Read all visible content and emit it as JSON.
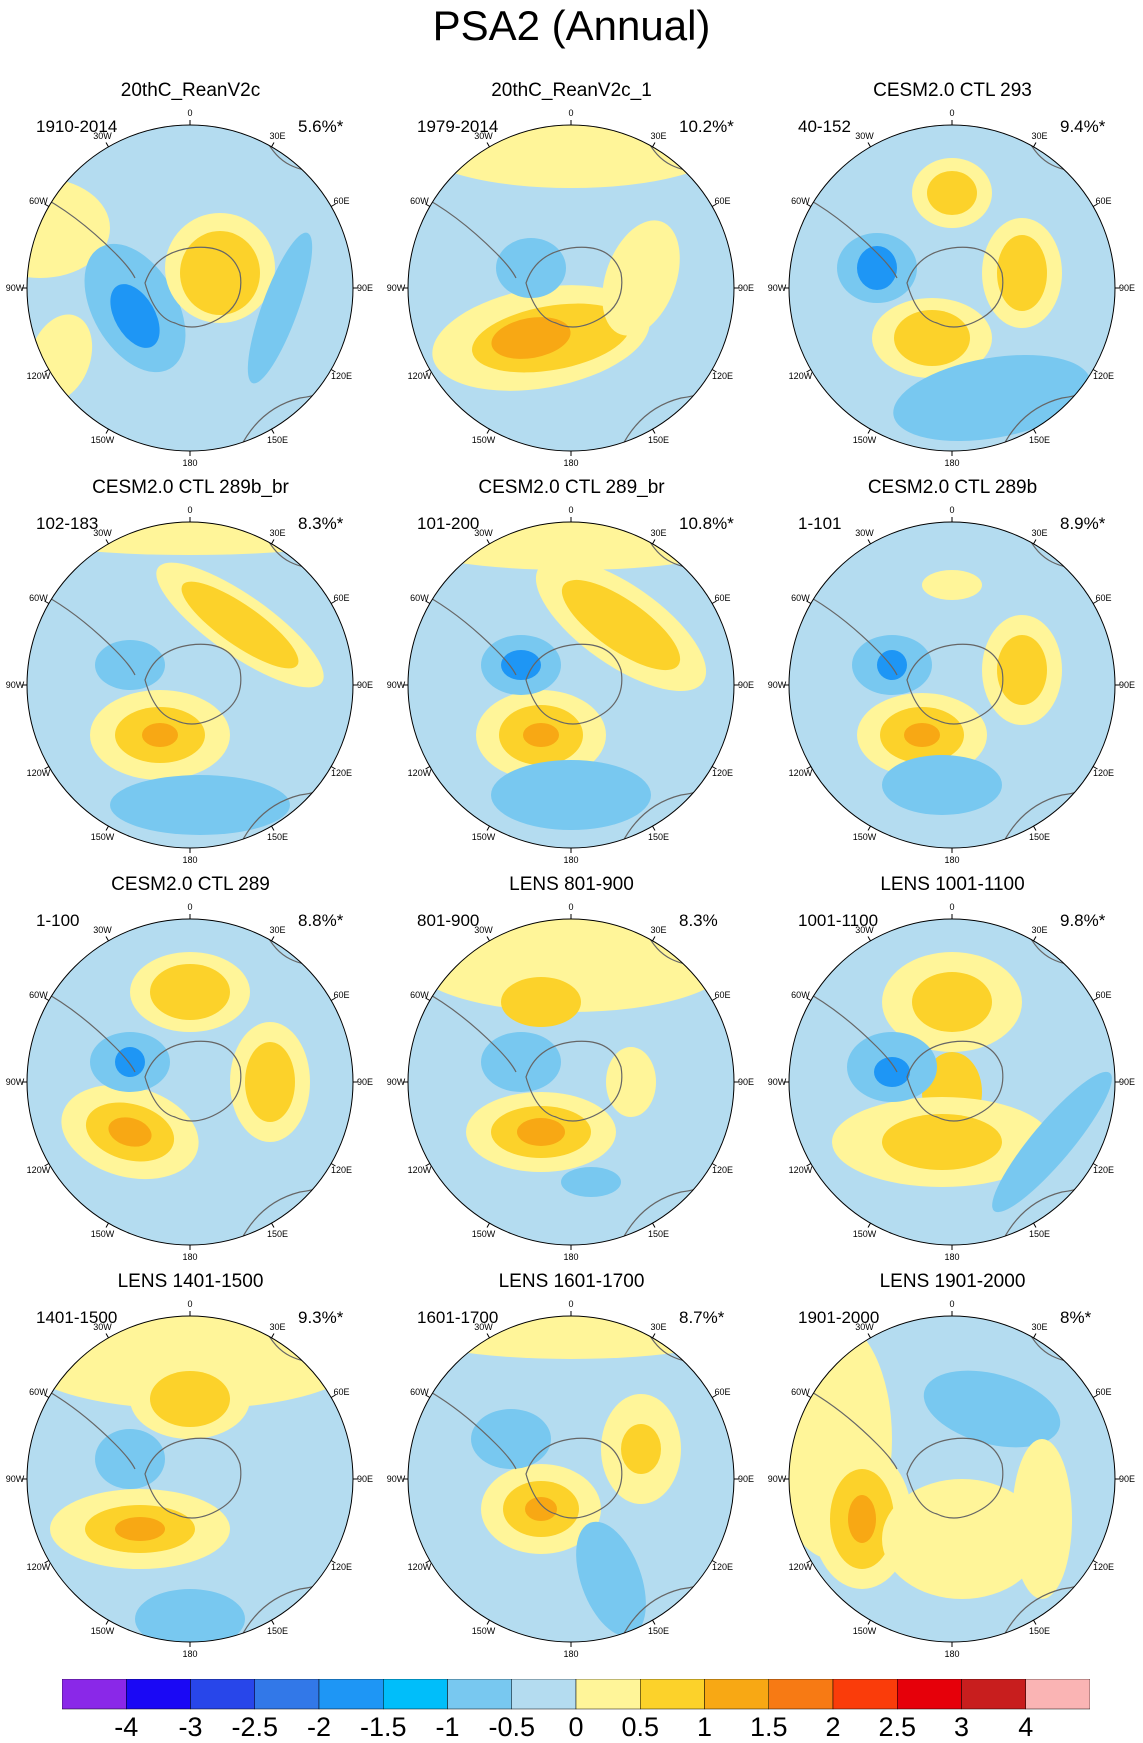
{
  "title": "PSA2 (Annual)",
  "panels": [
    {
      "title": "20thC_ReanV2c",
      "period": "1910-2014",
      "pct": "5.6%*"
    },
    {
      "title": "20thC_ReanV2c_1",
      "period": "1979-2014",
      "pct": "10.2%*"
    },
    {
      "title": "CESM2.0 CTL 293",
      "period": "40-152",
      "pct": "9.4%*"
    },
    {
      "title": "CESM2.0 CTL 289b_br",
      "period": "102-183",
      "pct": "8.3%*"
    },
    {
      "title": "CESM2.0 CTL 289_br",
      "period": "101-200",
      "pct": "10.8%*"
    },
    {
      "title": "CESM2.0 CTL 289b",
      "period": "1-101",
      "pct": "8.9%*"
    },
    {
      "title": "CESM2.0 CTL 289",
      "period": "1-100",
      "pct": "8.8%*"
    },
    {
      "title": "LENS 801-900",
      "period": "801-900",
      "pct": "8.3%"
    },
    {
      "title": "LENS 1001-1100",
      "period": "1001-1100",
      "pct": "9.8%*"
    },
    {
      "title": "LENS 1401-1500",
      "period": "1401-1500",
      "pct": "9.3%*"
    },
    {
      "title": "LENS 1601-1700",
      "period": "1601-1700",
      "pct": "8.7%*"
    },
    {
      "title": "LENS 1901-2000",
      "period": "1901-2000",
      "pct": "8%*"
    }
  ],
  "longitude_labels": [
    "0",
    "30E",
    "60E",
    "90E",
    "120E",
    "150E",
    "180",
    "150W",
    "120W",
    "90W",
    "60W",
    "30W"
  ],
  "colorbar": {
    "labels": [
      "-4",
      "-3",
      "-2.5",
      "-2",
      "-1.5",
      "-1",
      "-0.5",
      "0",
      "0.5",
      "1",
      "1.5",
      "2",
      "2.5",
      "3",
      "4"
    ],
    "colors": [
      "#8a28e8",
      "#1a08f5",
      "#2846ea",
      "#3278e8",
      "#1e96f5",
      "#00befa",
      "#78c8f0",
      "#b4dcf0",
      "#fff599",
      "#fcd22a",
      "#f8a814",
      "#f77a14",
      "#fa3c0a",
      "#e6000a",
      "#c81e1e",
      "#fab4b4"
    ]
  }
}
